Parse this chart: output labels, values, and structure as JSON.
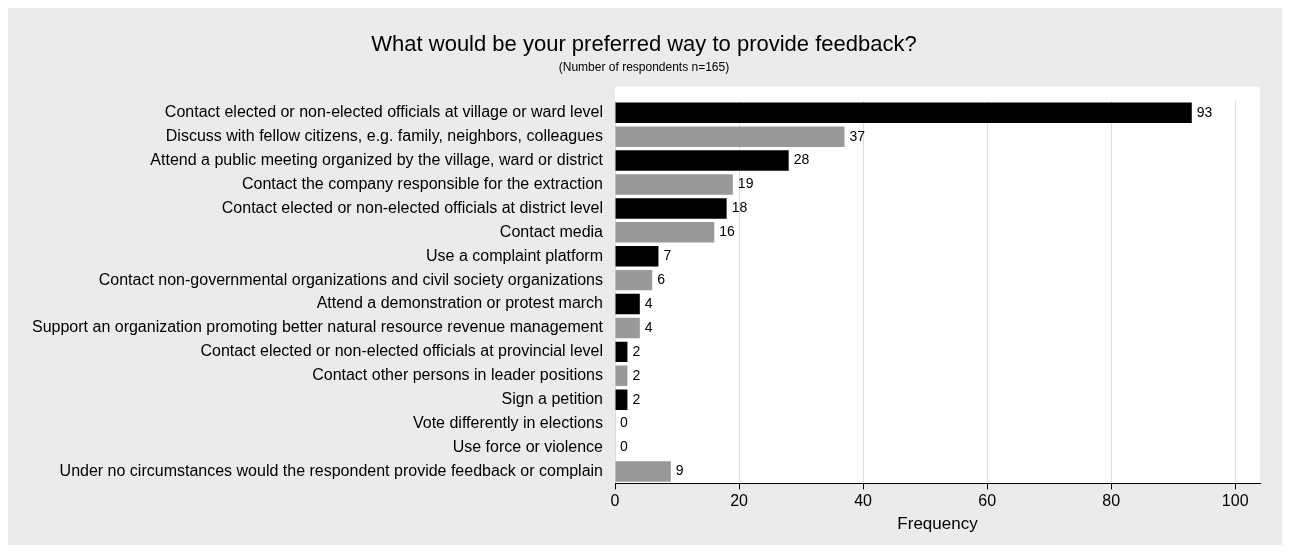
{
  "chart_data": {
    "type": "bar",
    "orientation": "horizontal",
    "title": "What would be your preferred way to provide feedback?",
    "subtitle": "(Number of respondents n=165)",
    "categories": [
      "Contact elected or non-elected officials at village or ward level",
      "Discuss with fellow citizens, e.g. family, neighbors, colleagues",
      "Attend a public meeting organized by the village, ward or district",
      "Contact the company responsible for the extraction",
      "Contact elected or non-elected officials at district level",
      "Contact media",
      "Use a complaint platform",
      "Contact non-governmental organizations and civil society organizations",
      "Attend a demonstration or protest march",
      "Support an organization promoting better natural resource revenue management",
      "Contact elected or non-elected officials at provincial level",
      "Contact other persons in leader positions",
      "Sign a petition",
      "Vote differently in elections",
      "Use force or violence",
      "Under no circumstances would the respondent provide feedback or complain"
    ],
    "values": [
      93,
      37,
      28,
      19,
      18,
      16,
      7,
      6,
      4,
      4,
      2,
      2,
      2,
      0,
      0,
      9
    ],
    "colors": [
      "#000000",
      "#999999",
      "#000000",
      "#999999",
      "#000000",
      "#999999",
      "#000000",
      "#999999",
      "#000000",
      "#999999",
      "#000000",
      "#999999",
      "#000000",
      "#999999",
      "#000000",
      "#999999"
    ],
    "xlabel": "Frequency",
    "xlim": [
      0,
      104
    ],
    "xticks": [
      0,
      20,
      40,
      60,
      80,
      100
    ],
    "grid": "x",
    "data_labels": true,
    "legend": false
  }
}
